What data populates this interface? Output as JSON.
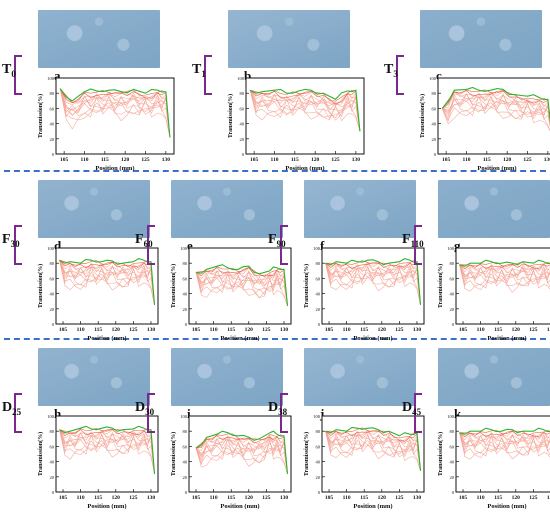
{
  "ylabel": "Transmission(%)",
  "xlabel": "Position (mm)",
  "yticks": [
    "0",
    "20",
    "40",
    "60",
    "80",
    "100"
  ],
  "colors": {
    "top": "#2db52d",
    "mid": "#e8452a",
    "low": "#f4a090",
    "axis": "#111111",
    "bracket": "#7a2a8c",
    "sep": "#3a70c9"
  },
  "chart_data": [
    {
      "type": "line",
      "panel": "a",
      "photo": "A",
      "group": "T",
      "sub": "0",
      "x": [
        104,
        107,
        110,
        113,
        116,
        119,
        122,
        125,
        128,
        130,
        131
      ],
      "xticks": [
        "105",
        "110",
        "115",
        "120",
        "125",
        "130"
      ],
      "ylim": [
        0,
        100
      ],
      "series": [
        {
          "values": [
            86,
            70,
            82,
            83,
            84,
            82,
            85,
            80,
            84,
            82,
            22
          ]
        }
      ]
    },
    {
      "type": "line",
      "panel": "b",
      "photo": "B",
      "group": "T",
      "sub": "1",
      "x": [
        104,
        107,
        110,
        113,
        116,
        119,
        122,
        125,
        128,
        130,
        131
      ],
      "xticks": [
        "105",
        "110",
        "115",
        "120",
        "125",
        "130"
      ],
      "ylim": [
        0,
        100
      ],
      "series": [
        {
          "values": [
            84,
            82,
            84,
            80,
            83,
            84,
            80,
            72,
            83,
            84,
            30
          ]
        }
      ]
    },
    {
      "type": "line",
      "panel": "c",
      "photo": "C",
      "group": "T",
      "sub": "3",
      "x": [
        104,
        107,
        110,
        113,
        116,
        119,
        122,
        125,
        128,
        130,
        131
      ],
      "xticks": [
        "105",
        "110",
        "115",
        "120",
        "125",
        "130"
      ],
      "ylim": [
        0,
        100
      ],
      "series": [
        {
          "values": [
            60,
            84,
            85,
            84,
            84,
            85,
            78,
            76,
            74,
            72,
            25
          ]
        }
      ]
    },
    {
      "type": "line",
      "panel": "d",
      "photo": "D",
      "group": "F",
      "sub": "30",
      "x": [
        104,
        107,
        110,
        113,
        116,
        119,
        122,
        125,
        128,
        130,
        131
      ],
      "xticks": [
        "105",
        "110",
        "115",
        "120",
        "125",
        "130"
      ],
      "ylim": [
        0,
        100
      ],
      "series": [
        {
          "values": [
            84,
            82,
            80,
            84,
            82,
            83,
            80,
            82,
            84,
            82,
            25
          ]
        }
      ]
    },
    {
      "type": "line",
      "panel": "e",
      "photo": "E",
      "group": "F",
      "sub": "60",
      "x": [
        105,
        108,
        111,
        114,
        117,
        120,
        123,
        126,
        128,
        130,
        131
      ],
      "xticks": [
        "105",
        "110",
        "115",
        "120",
        "125",
        "130"
      ],
      "ylim": [
        0,
        100
      ],
      "series": [
        {
          "values": [
            68,
            72,
            76,
            74,
            72,
            76,
            66,
            70,
            74,
            72,
            24
          ]
        }
      ]
    },
    {
      "type": "line",
      "panel": "f",
      "photo": "F",
      "group": "F",
      "sub": "90",
      "x": [
        104,
        107,
        110,
        113,
        116,
        119,
        122,
        125,
        128,
        130,
        131
      ],
      "xticks": [
        "105",
        "110",
        "115",
        "120",
        "125",
        "130"
      ],
      "ylim": [
        0,
        100
      ],
      "series": [
        {
          "values": [
            80,
            82,
            80,
            82,
            84,
            82,
            80,
            82,
            84,
            82,
            25
          ]
        }
      ]
    },
    {
      "type": "line",
      "panel": "g",
      "photo": "G",
      "group": "F",
      "sub": "110",
      "x": [
        104,
        107,
        110,
        113,
        116,
        119,
        122,
        125,
        128,
        130,
        131
      ],
      "xticks": [
        "105",
        "110",
        "115",
        "120",
        "125",
        "130"
      ],
      "ylim": [
        0,
        100
      ],
      "series": [
        {
          "values": [
            78,
            80,
            80,
            82,
            80,
            80,
            82,
            80,
            82,
            80,
            25
          ]
        }
      ]
    },
    {
      "type": "line",
      "panel": "h",
      "photo": "H",
      "group": "D",
      "sub": "25",
      "x": [
        104,
        107,
        110,
        113,
        116,
        119,
        122,
        125,
        128,
        130,
        131
      ],
      "xticks": [
        "105",
        "110",
        "115",
        "120",
        "125",
        "130"
      ],
      "ylim": [
        0,
        100
      ],
      "series": [
        {
          "values": [
            82,
            80,
            84,
            83,
            84,
            84,
            82,
            83,
            84,
            82,
            24
          ]
        }
      ]
    },
    {
      "type": "line",
      "panel": "i",
      "photo": "I",
      "group": "D",
      "sub": "30",
      "x": [
        105,
        108,
        111,
        114,
        117,
        120,
        123,
        126,
        128,
        130,
        131
      ],
      "xticks": [
        "105",
        "110",
        "115",
        "120",
        "125",
        "130"
      ],
      "ylim": [
        0,
        100
      ],
      "series": [
        {
          "values": [
            58,
            72,
            76,
            78,
            74,
            72,
            70,
            78,
            76,
            74,
            24
          ]
        }
      ]
    },
    {
      "type": "line",
      "panel": "j",
      "photo": "J",
      "group": "D",
      "sub": "38",
      "x": [
        104,
        107,
        110,
        113,
        116,
        119,
        122,
        125,
        128,
        130,
        131
      ],
      "xticks": [
        "105",
        "110",
        "115",
        "120",
        "125",
        "130"
      ],
      "ylim": [
        0,
        100
      ],
      "series": [
        {
          "values": [
            80,
            82,
            80,
            84,
            84,
            82,
            80,
            74,
            76,
            78,
            28
          ]
        }
      ]
    },
    {
      "type": "line",
      "panel": "k",
      "photo": "K",
      "group": "D",
      "sub": "45",
      "x": [
        104,
        107,
        110,
        113,
        116,
        119,
        122,
        125,
        128,
        130,
        131
      ],
      "xticks": [
        "105",
        "110",
        "115",
        "120",
        "125",
        "130"
      ],
      "ylim": [
        0,
        100
      ],
      "series": [
        {
          "values": [
            78,
            80,
            80,
            82,
            80,
            82,
            80,
            80,
            82,
            80,
            26
          ]
        }
      ]
    }
  ]
}
